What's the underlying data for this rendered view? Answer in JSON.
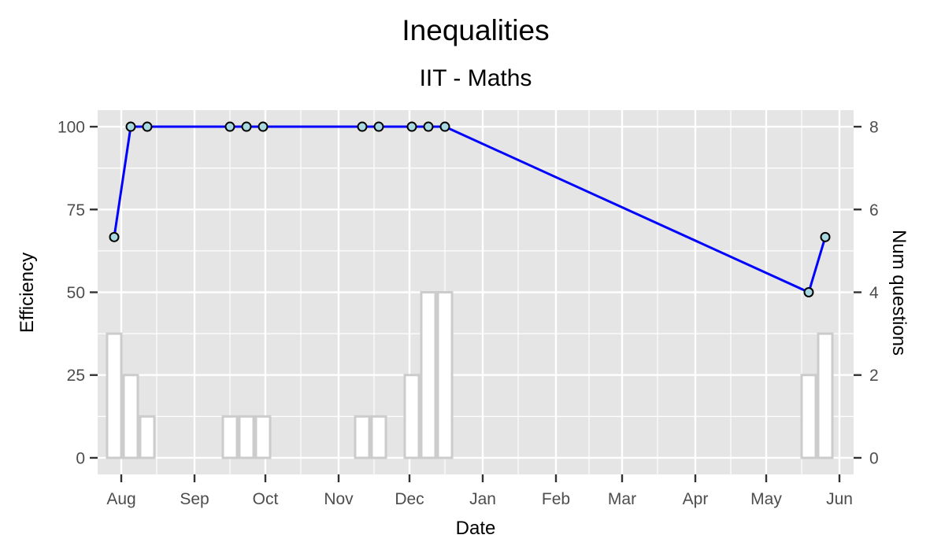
{
  "chart_data": {
    "type": "line",
    "title": "Inequalities",
    "subtitle": "IIT - Maths",
    "xlabel": "Date",
    "ylabel": "Efficiency",
    "y2label": "Num questions",
    "x_tick_labels": [
      "Aug",
      "Sep",
      "Oct",
      "Nov",
      "Dec",
      "Jan",
      "Feb",
      "Mar",
      "Apr",
      "May",
      "Jun"
    ],
    "y_ticks": [
      0,
      25,
      50,
      75,
      100
    ],
    "y2_ticks": [
      0,
      2,
      4,
      6,
      8
    ],
    "ylim": [
      -5,
      105
    ],
    "y2lim": [
      -0.4,
      8.4
    ],
    "xlim": [
      "2017-07-22",
      "2018-06-07"
    ],
    "grid": true,
    "series": [
      {
        "kind": "line",
        "color": "#0000ff",
        "marker_fill": "#a8d8e0",
        "x": [
          "2017-07-29",
          "2017-08-05",
          "2017-08-12",
          "2017-09-16",
          "2017-09-23",
          "2017-09-30",
          "2017-11-11",
          "2017-11-18",
          "2017-12-02",
          "2017-12-09",
          "2017-12-16",
          "2018-05-19",
          "2018-05-26"
        ],
        "values": [
          66.67,
          100,
          100,
          100,
          100,
          100,
          100,
          100,
          100,
          100,
          100,
          50,
          66.67
        ]
      },
      {
        "kind": "bar",
        "color": "#cccccc",
        "fill": "#ffffff",
        "x": [
          "2017-07-29",
          "2017-08-05",
          "2017-08-12",
          "2017-09-16",
          "2017-09-23",
          "2017-09-30",
          "2017-11-11",
          "2017-11-18",
          "2017-12-02",
          "2017-12-09",
          "2017-12-16",
          "2018-05-19",
          "2018-05-26"
        ],
        "values": [
          3,
          2,
          1,
          1,
          1,
          1,
          1,
          1,
          2,
          4,
          4,
          2,
          3
        ]
      }
    ]
  },
  "colors": {
    "panel_background": "#e5e5e5",
    "grid": "#ffffff",
    "line": "#0000ff",
    "marker_fill": "#a8d8e0",
    "bar_outline": "#cccccc"
  }
}
